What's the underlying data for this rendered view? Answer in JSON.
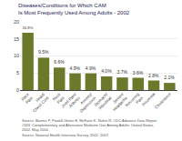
{
  "chart_data": {
    "type": "bar",
    "title": "Diseases/Conditions for Which CAM\nIs Most Frequently Used Among Adults - 2002",
    "categories": [
      "Back\nPain",
      "Head/\nChest Cold",
      "Neck\nPain",
      "Joint Pain/\nArthritis",
      "Anxiety/\nDepression",
      "Stomach/\nIntestinal",
      "Severe\nHeadache",
      "Recurring\nPain",
      "Insomnia",
      "Cholesterol"
    ],
    "values": [
      16.8,
      9.5,
      6.6,
      4.9,
      4.9,
      4.0,
      3.7,
      3.6,
      2.8,
      2.1
    ],
    "value_labels": [
      "16.8%",
      "9.5%",
      "6.6%",
      "4.9%",
      "4.9%",
      "4.0%",
      "3.7%",
      "3.6%",
      "2.8%",
      "2.1%"
    ],
    "color": "#6b7a2a",
    "ylim": [
      0,
      20
    ],
    "yticks": [
      0,
      5,
      10,
      15,
      20
    ],
    "grid": true,
    "data_labels": true,
    "annotations": [
      "Source: Barnes P, Powell-Griner E, McFann K, Nahin R. CDC Advance Data Report #343. Complementary and Alternative Medicine Use Among Adults: United States, 2002. May 2004.",
      "Source: National Health Interview Survey, 2002; 2007."
    ]
  }
}
